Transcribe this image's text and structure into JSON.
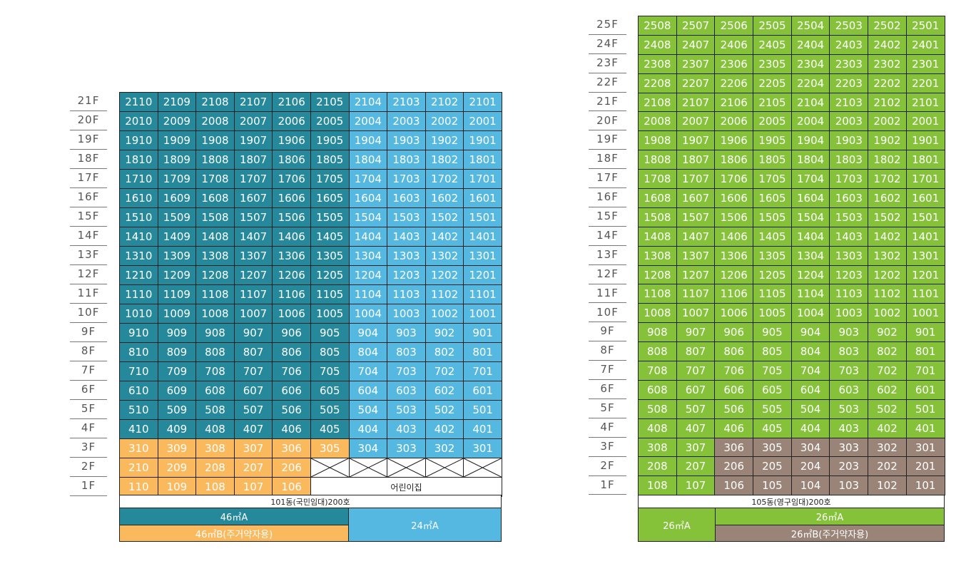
{
  "building_101": {
    "title": "101동(국민임대)200호",
    "daycare_label": "어린이집",
    "legend": {
      "type_46A": "46㎡A",
      "type_46B": "46㎡B(주거약자용)",
      "type_24A": "24㎡A"
    },
    "colors": {
      "46A": "#25899b",
      "24A": "#55b8e0",
      "46B": "#fbb95e"
    },
    "floors": [
      "21F",
      "20F",
      "19F",
      "18F",
      "17F",
      "16F",
      "15F",
      "14F",
      "13F",
      "12F",
      "11F",
      "10F",
      "9F",
      "8F",
      "7F",
      "6F",
      "5F",
      "4F",
      "3F",
      "2F",
      "1F"
    ],
    "units": [
      [
        "2110",
        "2109",
        "2108",
        "2107",
        "2106",
        "2105",
        "2104",
        "2103",
        "2102",
        "2101"
      ],
      [
        "2010",
        "2009",
        "2008",
        "2007",
        "2006",
        "2005",
        "2004",
        "2003",
        "2002",
        "2001"
      ],
      [
        "1910",
        "1909",
        "1908",
        "1907",
        "1906",
        "1905",
        "1904",
        "1903",
        "1902",
        "1901"
      ],
      [
        "1810",
        "1809",
        "1808",
        "1807",
        "1806",
        "1805",
        "1804",
        "1803",
        "1802",
        "1801"
      ],
      [
        "1710",
        "1709",
        "1708",
        "1707",
        "1706",
        "1705",
        "1704",
        "1703",
        "1702",
        "1701"
      ],
      [
        "1610",
        "1609",
        "1608",
        "1607",
        "1606",
        "1605",
        "1604",
        "1603",
        "1602",
        "1601"
      ],
      [
        "1510",
        "1509",
        "1508",
        "1507",
        "1506",
        "1505",
        "1504",
        "1503",
        "1502",
        "1501"
      ],
      [
        "1410",
        "1409",
        "1408",
        "1407",
        "1406",
        "1405",
        "1404",
        "1403",
        "1402",
        "1401"
      ],
      [
        "1310",
        "1309",
        "1308",
        "1307",
        "1306",
        "1305",
        "1304",
        "1303",
        "1302",
        "1301"
      ],
      [
        "1210",
        "1209",
        "1208",
        "1207",
        "1206",
        "1205",
        "1204",
        "1203",
        "1202",
        "1201"
      ],
      [
        "1110",
        "1109",
        "1108",
        "1107",
        "1106",
        "1105",
        "1104",
        "1103",
        "1102",
        "1101"
      ],
      [
        "1010",
        "1009",
        "1008",
        "1007",
        "1006",
        "1005",
        "1004",
        "1003",
        "1002",
        "1001"
      ],
      [
        "910",
        "909",
        "908",
        "907",
        "906",
        "905",
        "904",
        "903",
        "902",
        "901"
      ],
      [
        "810",
        "809",
        "808",
        "807",
        "806",
        "805",
        "804",
        "803",
        "802",
        "801"
      ],
      [
        "710",
        "709",
        "708",
        "707",
        "706",
        "705",
        "704",
        "703",
        "702",
        "701"
      ],
      [
        "610",
        "609",
        "608",
        "607",
        "606",
        "605",
        "604",
        "603",
        "602",
        "601"
      ],
      [
        "510",
        "509",
        "508",
        "507",
        "506",
        "505",
        "504",
        "503",
        "502",
        "501"
      ],
      [
        "410",
        "409",
        "408",
        "407",
        "406",
        "405",
        "404",
        "403",
        "402",
        "401"
      ],
      [
        "310",
        "309",
        "308",
        "307",
        "306",
        "305",
        "304",
        "303",
        "302",
        "301"
      ],
      [
        "210",
        "209",
        "208",
        "207",
        "206",
        "",
        "",
        "",
        "",
        ""
      ],
      [
        "110",
        "109",
        "108",
        "107",
        "106",
        "",
        "",
        "",
        "",
        ""
      ]
    ],
    "types": [
      [
        "A",
        "A",
        "A",
        "A",
        "A",
        "A",
        "L",
        "L",
        "L",
        "L"
      ],
      [
        "A",
        "A",
        "A",
        "A",
        "A",
        "A",
        "L",
        "L",
        "L",
        "L"
      ],
      [
        "A",
        "A",
        "A",
        "A",
        "A",
        "A",
        "L",
        "L",
        "L",
        "L"
      ],
      [
        "A",
        "A",
        "A",
        "A",
        "A",
        "A",
        "L",
        "L",
        "L",
        "L"
      ],
      [
        "A",
        "A",
        "A",
        "A",
        "A",
        "A",
        "L",
        "L",
        "L",
        "L"
      ],
      [
        "A",
        "A",
        "A",
        "A",
        "A",
        "A",
        "L",
        "L",
        "L",
        "L"
      ],
      [
        "A",
        "A",
        "A",
        "A",
        "A",
        "A",
        "L",
        "L",
        "L",
        "L"
      ],
      [
        "A",
        "A",
        "A",
        "A",
        "A",
        "A",
        "L",
        "L",
        "L",
        "L"
      ],
      [
        "A",
        "A",
        "A",
        "A",
        "A",
        "A",
        "L",
        "L",
        "L",
        "L"
      ],
      [
        "A",
        "A",
        "A",
        "A",
        "A",
        "A",
        "L",
        "L",
        "L",
        "L"
      ],
      [
        "A",
        "A",
        "A",
        "A",
        "A",
        "A",
        "L",
        "L",
        "L",
        "L"
      ],
      [
        "A",
        "A",
        "A",
        "A",
        "A",
        "A",
        "L",
        "L",
        "L",
        "L"
      ],
      [
        "A",
        "A",
        "A",
        "A",
        "A",
        "A",
        "L",
        "L",
        "L",
        "L"
      ],
      [
        "A",
        "A",
        "A",
        "A",
        "A",
        "A",
        "L",
        "L",
        "L",
        "L"
      ],
      [
        "A",
        "A",
        "A",
        "A",
        "A",
        "A",
        "L",
        "L",
        "L",
        "L"
      ],
      [
        "A",
        "A",
        "A",
        "A",
        "A",
        "A",
        "L",
        "L",
        "L",
        "L"
      ],
      [
        "A",
        "A",
        "A",
        "A",
        "A",
        "A",
        "L",
        "L",
        "L",
        "L"
      ],
      [
        "A",
        "A",
        "A",
        "A",
        "A",
        "A",
        "L",
        "L",
        "L",
        "L"
      ],
      [
        "B",
        "B",
        "B",
        "B",
        "B",
        "B",
        "L",
        "L",
        "L",
        "L"
      ],
      [
        "B",
        "B",
        "B",
        "B",
        "B",
        "X",
        "X",
        "X",
        "X",
        "X"
      ],
      [
        "B",
        "B",
        "B",
        "B",
        "B",
        "D",
        "D",
        "D",
        "D",
        "D"
      ]
    ]
  },
  "building_105": {
    "title": "105동(영구임대)200호",
    "legend": {
      "type_26A_left": "26㎡A",
      "type_26A_top": "26㎡A",
      "type_26B": "26㎡B(주거약자용)"
    },
    "colors": {
      "26A": "#85c23a",
      "26B": "#9a8478"
    },
    "floors": [
      "25F",
      "24F",
      "23F",
      "22F",
      "21F",
      "20F",
      "19F",
      "18F",
      "17F",
      "16F",
      "15F",
      "14F",
      "13F",
      "12F",
      "11F",
      "10F",
      "9F",
      "8F",
      "7F",
      "6F",
      "5F",
      "4F",
      "3F",
      "2F",
      "1F"
    ],
    "units": [
      [
        "2508",
        "2507",
        "2506",
        "2505",
        "2504",
        "2503",
        "2502",
        "2501"
      ],
      [
        "2408",
        "2407",
        "2406",
        "2405",
        "2404",
        "2403",
        "2402",
        "2401"
      ],
      [
        "2308",
        "2307",
        "2306",
        "2305",
        "2304",
        "2303",
        "2302",
        "2301"
      ],
      [
        "2208",
        "2207",
        "2206",
        "2205",
        "2204",
        "2203",
        "2202",
        "2201"
      ],
      [
        "2108",
        "2107",
        "2106",
        "2105",
        "2104",
        "2103",
        "2102",
        "2101"
      ],
      [
        "2008",
        "2007",
        "2006",
        "2005",
        "2004",
        "2003",
        "2002",
        "2001"
      ],
      [
        "1908",
        "1907",
        "1906",
        "1905",
        "1904",
        "1903",
        "1902",
        "1901"
      ],
      [
        "1808",
        "1807",
        "1806",
        "1805",
        "1804",
        "1803",
        "1802",
        "1801"
      ],
      [
        "1708",
        "1707",
        "1706",
        "1705",
        "1704",
        "1703",
        "1702",
        "1701"
      ],
      [
        "1608",
        "1607",
        "1606",
        "1605",
        "1604",
        "1603",
        "1602",
        "1601"
      ],
      [
        "1508",
        "1507",
        "1506",
        "1505",
        "1504",
        "1503",
        "1502",
        "1501"
      ],
      [
        "1408",
        "1407",
        "1406",
        "1405",
        "1404",
        "1403",
        "1402",
        "1401"
      ],
      [
        "1308",
        "1307",
        "1306",
        "1305",
        "1304",
        "1303",
        "1302",
        "1301"
      ],
      [
        "1208",
        "1207",
        "1206",
        "1205",
        "1204",
        "1203",
        "1202",
        "1201"
      ],
      [
        "1108",
        "1107",
        "1106",
        "1105",
        "1104",
        "1103",
        "1102",
        "1101"
      ],
      [
        "1008",
        "1007",
        "1006",
        "1005",
        "1004",
        "1003",
        "1002",
        "1001"
      ],
      [
        "908",
        "907",
        "906",
        "905",
        "904",
        "903",
        "902",
        "901"
      ],
      [
        "808",
        "807",
        "806",
        "805",
        "804",
        "803",
        "802",
        "801"
      ],
      [
        "708",
        "707",
        "706",
        "705",
        "704",
        "703",
        "702",
        "701"
      ],
      [
        "608",
        "607",
        "606",
        "605",
        "604",
        "603",
        "602",
        "601"
      ],
      [
        "508",
        "507",
        "506",
        "505",
        "504",
        "503",
        "502",
        "501"
      ],
      [
        "408",
        "407",
        "406",
        "405",
        "404",
        "403",
        "402",
        "401"
      ],
      [
        "308",
        "307",
        "306",
        "305",
        "304",
        "303",
        "302",
        "301"
      ],
      [
        "208",
        "207",
        "206",
        "205",
        "204",
        "203",
        "202",
        "201"
      ],
      [
        "108",
        "107",
        "106",
        "105",
        "104",
        "103",
        "102",
        "101"
      ]
    ],
    "brown_rows_from_bottom": 3,
    "brown_first_col": 2
  }
}
